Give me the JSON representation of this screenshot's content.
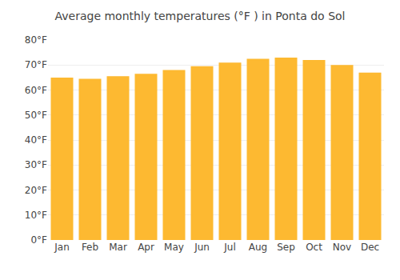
{
  "chart_data": {
    "type": "bar",
    "title": "Average monthly temperatures (°F ) in Ponta do Sol",
    "categories": [
      "Jan",
      "Feb",
      "Mar",
      "Apr",
      "May",
      "Jun",
      "Jul",
      "Aug",
      "Sep",
      "Oct",
      "Nov",
      "Dec"
    ],
    "values": [
      65,
      64.5,
      65.5,
      66.5,
      68,
      69.5,
      71,
      72.5,
      73,
      72,
      70,
      67
    ],
    "color": "#FDB931",
    "ylim": [
      0,
      80
    ],
    "yticks": [
      {
        "value": 0,
        "label": "0°F"
      },
      {
        "value": 10,
        "label": "10°F"
      },
      {
        "value": 20,
        "label": "20°F"
      },
      {
        "value": 30,
        "label": "30°F"
      },
      {
        "value": 40,
        "label": "40°F"
      },
      {
        "value": 50,
        "label": "50°F"
      },
      {
        "value": 60,
        "label": "60°F"
      },
      {
        "value": 70,
        "label": "70°F"
      },
      {
        "value": 80,
        "label": "80°F"
      }
    ],
    "grid": true
  }
}
